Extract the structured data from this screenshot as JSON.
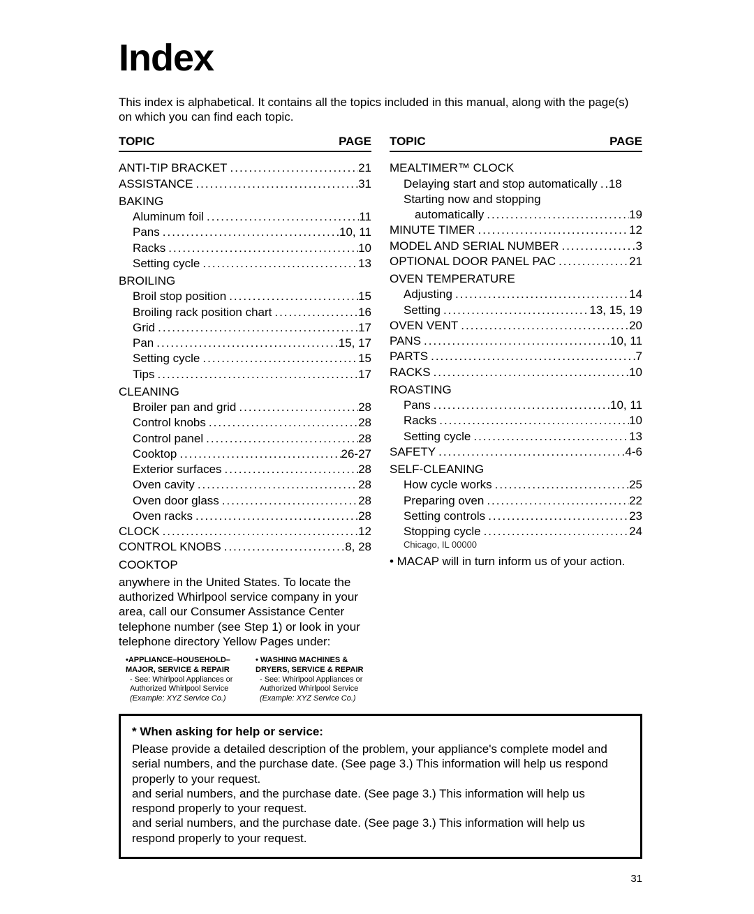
{
  "page": {
    "title": "Index",
    "intro": "This index is alphabetical. It contains all the topics included in this manual, along with the page(s) on which you can find each topic.",
    "columnHeaders": {
      "topic": "TOPIC",
      "page": "PAGE"
    },
    "footerPage": "31"
  },
  "leftColumn": [
    {
      "type": "entry",
      "label": "ANTI-TIP BRACKET",
      "page": "21"
    },
    {
      "type": "entry",
      "label": "ASSISTANCE",
      "page": "31"
    },
    {
      "type": "heading",
      "label": "BAKING"
    },
    {
      "type": "sub",
      "label": "Aluminum foil",
      "page": "11"
    },
    {
      "type": "sub",
      "label": "Pans",
      "page": "10, 11"
    },
    {
      "type": "sub",
      "label": "Racks",
      "page": "10"
    },
    {
      "type": "sub",
      "label": "Setting cycle",
      "page": "13"
    },
    {
      "type": "heading",
      "label": "BROILING"
    },
    {
      "type": "sub",
      "label": "Broil stop position",
      "page": "15"
    },
    {
      "type": "sub",
      "label": "Broiling rack position chart",
      "page": "16"
    },
    {
      "type": "sub",
      "label": "Grid",
      "page": "17"
    },
    {
      "type": "sub",
      "label": "Pan",
      "page": "15, 17"
    },
    {
      "type": "sub",
      "label": "Setting cycle",
      "page": "15"
    },
    {
      "type": "sub",
      "label": "Tips",
      "page": "17"
    },
    {
      "type": "heading",
      "label": "CLEANING"
    },
    {
      "type": "sub",
      "label": "Broiler pan and grid",
      "page": "28"
    },
    {
      "type": "sub",
      "label": "Control knobs",
      "page": "28"
    },
    {
      "type": "sub",
      "label": "Control panel",
      "page": "28"
    },
    {
      "type": "sub",
      "label": "Cooktop",
      "page": "26-27"
    },
    {
      "type": "sub",
      "label": "Exterior surfaces",
      "page": "28"
    },
    {
      "type": "sub",
      "label": "Oven cavity",
      "page": "28"
    },
    {
      "type": "sub",
      "label": "Oven door glass",
      "page": "28"
    },
    {
      "type": "sub",
      "label": "Oven racks",
      "page": "28"
    },
    {
      "type": "entry",
      "label": "CLOCK",
      "page": "12"
    },
    {
      "type": "entry",
      "label": "CONTROL KNOBS",
      "page": "8, 28"
    },
    {
      "type": "heading",
      "label": "COOKTOP"
    }
  ],
  "rightColumn": [
    {
      "type": "heading",
      "label": "MEALTIMER™ CLOCK"
    },
    {
      "type": "sub",
      "label": "Delaying start and stop automatically",
      "page": "18",
      "tight": true
    },
    {
      "type": "subheading",
      "label": "Starting now and stopping"
    },
    {
      "type": "sub",
      "label": "automatically",
      "page": "19",
      "indent2": true
    },
    {
      "type": "entry",
      "label": "MINUTE TIMER",
      "page": "12"
    },
    {
      "type": "entry",
      "label": "MODEL AND SERIAL NUMBER",
      "page": "3"
    },
    {
      "type": "entry",
      "label": "OPTIONAL DOOR PANEL PAC",
      "page": "21"
    },
    {
      "type": "heading",
      "label": "OVEN TEMPERATURE"
    },
    {
      "type": "sub",
      "label": "Adjusting",
      "page": "14"
    },
    {
      "type": "sub",
      "label": "Setting",
      "page": "13, 15, 19"
    },
    {
      "type": "entry",
      "label": "OVEN VENT",
      "page": "20"
    },
    {
      "type": "entry",
      "label": "PANS",
      "page": "10, 11"
    },
    {
      "type": "entry",
      "label": "PARTS",
      "page": "7"
    },
    {
      "type": "entry",
      "label": "RACKS",
      "page": "10"
    },
    {
      "type": "heading",
      "label": "ROASTING"
    },
    {
      "type": "sub",
      "label": "Pans",
      "page": "10, 11"
    },
    {
      "type": "sub",
      "label": "Racks",
      "page": "10"
    },
    {
      "type": "sub",
      "label": "Setting cycle",
      "page": "13"
    },
    {
      "type": "entry",
      "label": "SAFETY",
      "page": "4-6"
    },
    {
      "type": "heading",
      "label": "SELF-CLEANING"
    },
    {
      "type": "sub",
      "label": "How cycle works",
      "page": "25"
    },
    {
      "type": "sub",
      "label": "Preparing oven",
      "page": "22"
    },
    {
      "type": "sub",
      "label": "Setting controls",
      "page": "23"
    },
    {
      "type": "sub",
      "label": "Stopping cycle",
      "page": "24"
    }
  ],
  "rightExtra": {
    "garbledLine": "Chicago, IL 00000",
    "bullet": "• MACAP will in turn inform us of your action."
  },
  "service": {
    "para": "anywhere in the United States. To locate the authorized Whirlpool service company in your area, call our Consumer Assistance Center telephone number (see Step 1) or look in your telephone directory Yellow Pages under:",
    "listings": [
      {
        "heading": "•APPLIANCE–HOUSEHOLD– MAJOR, SERVICE & REPAIR",
        "line1": "- See: Whirlpool Appliances or",
        "line2": "Authorized Whirlpool Service",
        "line3": "(Example: XYZ Service Co.)"
      },
      {
        "heading": "• WASHING MACHINES & DRYERS, SERVICE & REPAIR",
        "line1": "- See: Whirlpool Appliances or",
        "line2": "Authorized Whirlpool Service",
        "line3": "(Example: XYZ Service Co.)"
      }
    ]
  },
  "helpBox": {
    "title": "* When asking for help or service:",
    "p1": "Please provide a detailed description of the problem, your appliance's complete model and serial numbers, and the purchase date. (See page 3.) This information will help us respond properly to your request.",
    "p2": "and serial numbers, and the purchase date. (See page 3.) This information will help us respond properly to your request.",
    "p3": "and serial numbers, and the purchase date. (See page 3.) This information will help us respond properly to your request."
  }
}
